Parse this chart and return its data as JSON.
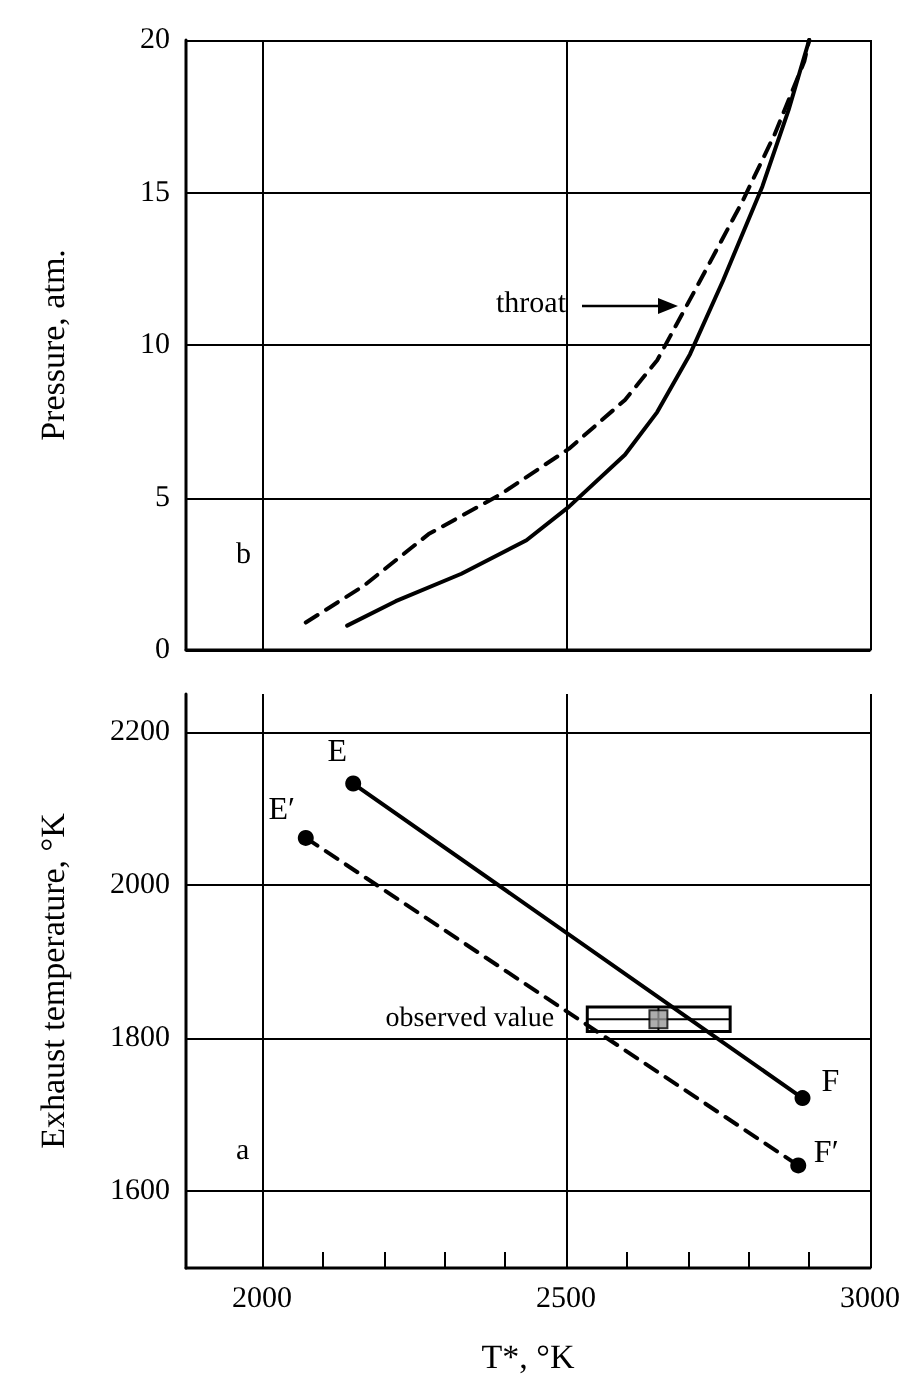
{
  "chart_data": [
    {
      "type": "line",
      "ylabel": "Pressure, atm.",
      "xlim": [
        1875,
        3000
      ],
      "xticks": [
        2000,
        2500,
        3000
      ],
      "ylim": [
        0,
        20
      ],
      "yticks": [
        0,
        5,
        10,
        15,
        20
      ],
      "tick_labels": "y",
      "grid": true,
      "marker": "none",
      "series": [
        {
          "color": "#000000",
          "line_style": "solid",
          "x": [
            2140,
            2220,
            2328,
            2435,
            2505,
            2597,
            2650,
            2704,
            2758,
            2823,
            2866,
            2900
          ],
          "values": [
            0.8,
            1.6,
            2.5,
            3.6,
            4.7,
            6.4,
            7.8,
            9.7,
            12.1,
            15.2,
            17.7,
            20
          ]
        },
        {
          "color": "#000000",
          "line_style": "dashed",
          "x": [
            2072,
            2167,
            2274,
            2392,
            2505,
            2597,
            2650,
            2715,
            2790,
            2843,
            2892,
            2900
          ],
          "values": [
            0.9,
            2.1,
            3.8,
            5.1,
            6.6,
            8.2,
            9.5,
            11.9,
            14.7,
            16.9,
            19.3,
            20
          ]
        }
      ],
      "annotations": [
        "throat",
        "b"
      ]
    },
    {
      "type": "line",
      "xlabel": "T*, °K",
      "ylabel": "Exhaust temperature, °K",
      "xlim": [
        1875,
        3000
      ],
      "xticks": [
        2000,
        {
          "value": 2100,
          "label": null
        },
        {
          "value": 2200,
          "label": null
        },
        {
          "value": 2300,
          "label": null
        },
        {
          "value": 2400,
          "label": null
        },
        2500,
        {
          "value": 2600,
          "label": null
        },
        {
          "value": 2700,
          "label": null
        },
        {
          "value": 2800,
          "label": null
        },
        {
          "value": 2900,
          "label": null
        },
        3000
      ],
      "ylim": [
        1500,
        2250
      ],
      "yticks": [
        1600,
        1800,
        2000,
        2200
      ],
      "grid": true,
      "marker": "circle",
      "series": [
        {
          "color": "#000000",
          "line_style": "solid",
          "x": [
            2150,
            2889
          ],
          "values": [
            2133,
            1722
          ]
        },
        {
          "color": "#000000",
          "line_style": "dashed",
          "x": [
            2072,
            2882
          ],
          "values": [
            2062,
            1634
          ]
        },
        {
          "type": "scatter",
          "marker": "square",
          "color": "#999999",
          "x": [
            2652
          ],
          "values": [
            1825
          ],
          "xerrors": [
            [
              2535,
              2770
            ]
          ],
          "errors": [
            [
              1809,
              1841
            ]
          ]
        }
      ],
      "annotations": [
        {
          "text": "E",
          "x": 2150,
          "y": 2133
        },
        {
          "text": "E′",
          "x": 2072,
          "y": 2062
        },
        {
          "text": "F",
          "x": 2889,
          "y": 1722
        },
        {
          "text": "F′",
          "x": 2882,
          "y": 1634
        },
        {
          "text": "observed value",
          "x": 2535,
          "y": 1825
        },
        "a"
      ]
    }
  ]
}
